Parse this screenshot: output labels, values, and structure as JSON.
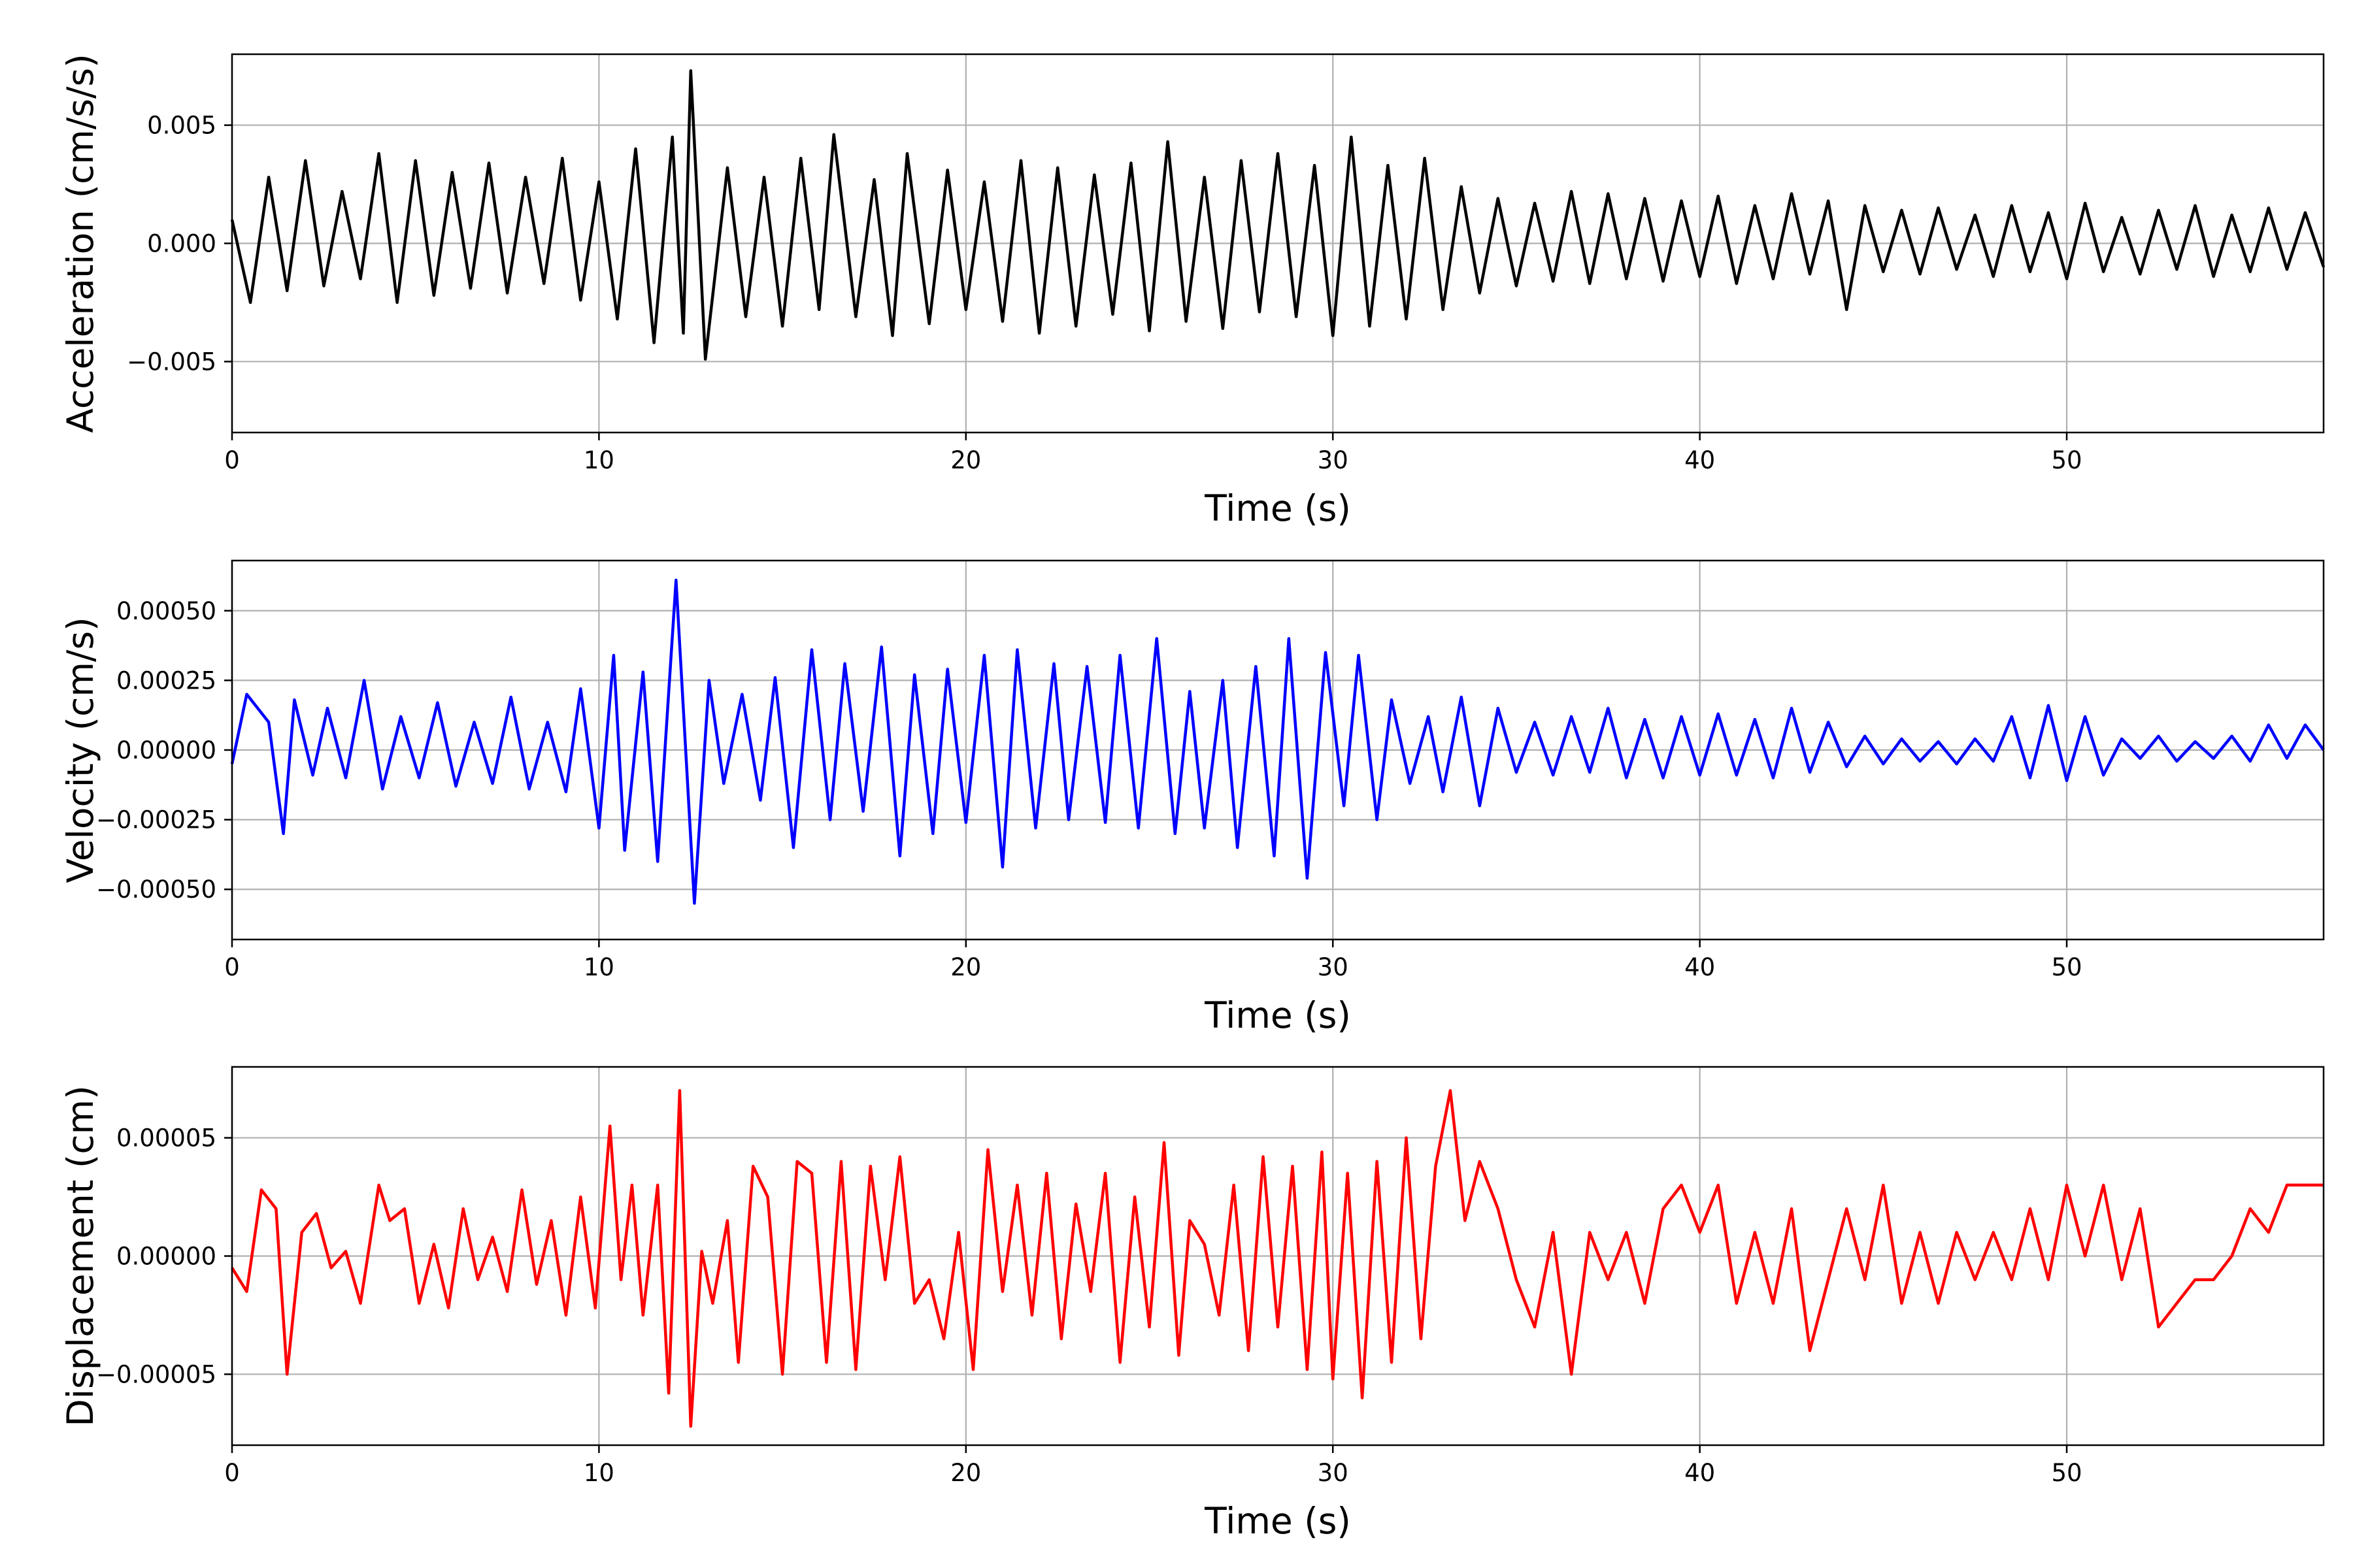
{
  "chart_data": [
    {
      "type": "line",
      "title": "",
      "xlabel": "Time (s)",
      "ylabel": "Acceleration (cm/s/s)",
      "xlim": [
        0,
        57
      ],
      "ylim": [
        -0.008,
        0.008
      ],
      "grid": true,
      "color": "#000000",
      "xticks": [
        0,
        10,
        20,
        30,
        40,
        50
      ],
      "xtick_labels": [
        "0",
        "10",
        "20",
        "30",
        "40",
        "50"
      ],
      "yticks": [
        -0.005,
        0.0,
        0.005
      ],
      "ytick_labels": [
        "−0.005",
        "0.000",
        "0.005"
      ],
      "series": [
        {
          "x": [
            0,
            0.5,
            1,
            1.5,
            2,
            2.5,
            3,
            3.5,
            4,
            4.5,
            5,
            5.5,
            6,
            6.5,
            7,
            7.5,
            8,
            8.5,
            9,
            9.5,
            10,
            10.5,
            11,
            11.5,
            12,
            12.3,
            12.5,
            12.9,
            13.5,
            14,
            14.5,
            15,
            15.5,
            16,
            16.4,
            17,
            17.5,
            18,
            18.4,
            19,
            19.5,
            20,
            20.5,
            21,
            21.5,
            22,
            22.5,
            23,
            23.5,
            24,
            24.5,
            25,
            25.5,
            26,
            26.5,
            27,
            27.5,
            28,
            28.5,
            29,
            29.5,
            30,
            30.5,
            31,
            31.5,
            32,
            32.5,
            33,
            33.5,
            34,
            34.5,
            35,
            35.5,
            36,
            36.5,
            37,
            37.5,
            38,
            38.5,
            39,
            39.5,
            40,
            40.5,
            41,
            41.5,
            42,
            42.5,
            43,
            43.5,
            44,
            44.5,
            45,
            45.5,
            46,
            46.5,
            47,
            47.5,
            48,
            48.5,
            49,
            49.5,
            50,
            50.5,
            51,
            51.5,
            52,
            52.5,
            53,
            53.5,
            54,
            54.5,
            55,
            55.5,
            56,
            56.5,
            57
          ],
          "y": [
            0.001,
            -0.0025,
            0.0028,
            -0.002,
            0.0035,
            -0.0018,
            0.0022,
            -0.0015,
            0.0038,
            -0.0025,
            0.0035,
            -0.0022,
            0.003,
            -0.0019,
            0.0034,
            -0.0021,
            0.0028,
            -0.0017,
            0.0036,
            -0.0024,
            0.0026,
            -0.0032,
            0.004,
            -0.0042,
            0.0045,
            -0.0038,
            0.0073,
            -0.0049,
            0.0032,
            -0.0031,
            0.0028,
            -0.0035,
            0.0036,
            -0.0028,
            0.0046,
            -0.0031,
            0.0027,
            -0.0039,
            0.0038,
            -0.0034,
            0.0031,
            -0.0028,
            0.0026,
            -0.0033,
            0.0035,
            -0.0038,
            0.0032,
            -0.0035,
            0.0029,
            -0.003,
            0.0034,
            -0.0037,
            0.0043,
            -0.0033,
            0.0028,
            -0.0036,
            0.0035,
            -0.0029,
            0.0038,
            -0.0031,
            0.0033,
            -0.0039,
            0.0045,
            -0.0035,
            0.0033,
            -0.0032,
            0.0036,
            -0.0028,
            0.0024,
            -0.0021,
            0.0019,
            -0.0018,
            0.0017,
            -0.0016,
            0.0022,
            -0.0017,
            0.0021,
            -0.0015,
            0.0019,
            -0.0016,
            0.0018,
            -0.0014,
            0.002,
            -0.0017,
            0.0016,
            -0.0015,
            0.0021,
            -0.0013,
            0.0018,
            -0.0028,
            0.0016,
            -0.0012,
            0.0014,
            -0.0013,
            0.0015,
            -0.0011,
            0.0012,
            -0.0014,
            0.0016,
            -0.0012,
            0.0013,
            -0.0015,
            0.0017,
            -0.0012,
            0.0011,
            -0.0013,
            0.0014,
            -0.0011,
            0.0016,
            -0.0014,
            0.0012,
            -0.0012,
            0.0015,
            -0.0011,
            0.0013,
            -0.001
          ]
        }
      ]
    },
    {
      "type": "line",
      "title": "",
      "xlabel": "Time (s)",
      "ylabel": "Velocity (cm/s)",
      "xlim": [
        0,
        57
      ],
      "ylim": [
        -0.00068,
        0.00068
      ],
      "grid": true,
      "color": "#0000ff",
      "xticks": [
        0,
        10,
        20,
        30,
        40,
        50
      ],
      "xtick_labels": [
        "0",
        "10",
        "20",
        "30",
        "40",
        "50"
      ],
      "yticks": [
        -0.0005,
        -0.00025,
        0.0,
        0.00025,
        0.0005
      ],
      "ytick_labels": [
        "−0.00050",
        "−0.00025",
        "0.00000",
        "0.00025",
        "0.00050"
      ],
      "series": [
        {
          "x": [
            0,
            0.4,
            1,
            1.4,
            1.7,
            2.2,
            2.6,
            3.1,
            3.6,
            4.1,
            4.6,
            5.1,
            5.6,
            6.1,
            6.6,
            7.1,
            7.6,
            8.1,
            8.6,
            9.1,
            9.5,
            10,
            10.4,
            10.7,
            11.2,
            11.6,
            12.1,
            12.6,
            13,
            13.4,
            13.9,
            14.4,
            14.8,
            15.3,
            15.8,
            16.3,
            16.7,
            17.2,
            17.7,
            18.2,
            18.6,
            19.1,
            19.5,
            20,
            20.5,
            21,
            21.4,
            21.9,
            22.4,
            22.8,
            23.3,
            23.8,
            24.2,
            24.7,
            25.2,
            25.7,
            26.1,
            26.5,
            27,
            27.4,
            27.9,
            28.4,
            28.8,
            29.3,
            29.8,
            30.3,
            30.7,
            31.2,
            31.6,
            32.1,
            32.6,
            33,
            33.5,
            34,
            34.5,
            35,
            35.5,
            36,
            36.5,
            37,
            37.5,
            38,
            38.5,
            39,
            39.5,
            40,
            40.5,
            41,
            41.5,
            42,
            42.5,
            43,
            43.5,
            44,
            44.5,
            45,
            45.5,
            46,
            46.5,
            47,
            47.5,
            48,
            48.5,
            49,
            49.5,
            50,
            50.5,
            51,
            51.5,
            52,
            52.5,
            53,
            53.5,
            54,
            54.5,
            55,
            55.5,
            56,
            56.5,
            57
          ],
          "y": [
            -5e-05,
            0.0002,
            0.0001,
            -0.0003,
            0.00018,
            -9e-05,
            0.00015,
            -0.0001,
            0.00025,
            -0.00014,
            0.00012,
            -0.0001,
            0.00017,
            -0.00013,
            0.0001,
            -0.00012,
            0.00019,
            -0.00014,
            0.0001,
            -0.00015,
            0.00022,
            -0.00028,
            0.00034,
            -0.00036,
            0.00028,
            -0.0004,
            0.00061,
            -0.00055,
            0.00025,
            -0.00012,
            0.0002,
            -0.00018,
            0.00026,
            -0.00035,
            0.00036,
            -0.00025,
            0.00031,
            -0.00022,
            0.00037,
            -0.00038,
            0.00027,
            -0.0003,
            0.00029,
            -0.00026,
            0.00034,
            -0.00042,
            0.00036,
            -0.00028,
            0.00031,
            -0.00025,
            0.0003,
            -0.00026,
            0.00034,
            -0.00028,
            0.0004,
            -0.0003,
            0.00021,
            -0.00028,
            0.00025,
            -0.00035,
            0.0003,
            -0.00038,
            0.0004,
            -0.00046,
            0.00035,
            -0.0002,
            0.00034,
            -0.00025,
            0.00018,
            -0.00012,
            0.00012,
            -0.00015,
            0.00019,
            -0.0002,
            0.00015,
            -8e-05,
            0.0001,
            -9e-05,
            0.00012,
            -8e-05,
            0.00015,
            -0.0001,
            0.00011,
            -0.0001,
            0.00012,
            -9e-05,
            0.00013,
            -9e-05,
            0.00011,
            -0.0001,
            0.00015,
            -8e-05,
            0.0001,
            -6e-05,
            5e-05,
            -5e-05,
            4e-05,
            -4e-05,
            3e-05,
            -5e-05,
            4e-05,
            -4e-05,
            0.00012,
            -0.0001,
            0.00016,
            -0.00011,
            0.00012,
            -9e-05,
            4e-05,
            -3e-05,
            5e-05,
            -4e-05,
            3e-05,
            -3e-05,
            5e-05,
            -4e-05,
            9e-05,
            -3e-05,
            9e-05,
            0.0
          ]
        }
      ]
    },
    {
      "type": "line",
      "title": "",
      "xlabel": "Time (s)",
      "ylabel": "Displacement (cm)",
      "xlim": [
        0,
        57
      ],
      "ylim": [
        -8e-05,
        8e-05
      ],
      "grid": true,
      "color": "#ff0000",
      "xticks": [
        0,
        10,
        20,
        30,
        40,
        50
      ],
      "xtick_labels": [
        "0",
        "10",
        "20",
        "30",
        "40",
        "50"
      ],
      "yticks": [
        -5e-05,
        0.0,
        5e-05
      ],
      "ytick_labels": [
        "−0.00005",
        "0.00000",
        "0.00005"
      ],
      "series": [
        {
          "x": [
            0,
            0.4,
            0.8,
            1.2,
            1.5,
            1.9,
            2.3,
            2.7,
            3.1,
            3.5,
            4,
            4.3,
            4.7,
            5.1,
            5.5,
            5.9,
            6.3,
            6.7,
            7.1,
            7.5,
            7.9,
            8.3,
            8.7,
            9.1,
            9.5,
            9.9,
            10.3,
            10.6,
            10.9,
            11.2,
            11.6,
            11.9,
            12.2,
            12.5,
            12.8,
            13.1,
            13.5,
            13.8,
            14.2,
            14.6,
            15,
            15.4,
            15.8,
            16.2,
            16.6,
            17,
            17.4,
            17.8,
            18.2,
            18.6,
            19,
            19.4,
            19.8,
            20.2,
            20.6,
            21,
            21.4,
            21.8,
            22.2,
            22.6,
            23,
            23.4,
            23.8,
            24.2,
            24.6,
            25,
            25.4,
            25.8,
            26.1,
            26.5,
            26.9,
            27.3,
            27.7,
            28.1,
            28.5,
            28.9,
            29.3,
            29.7,
            30,
            30.4,
            30.8,
            31.2,
            31.6,
            32,
            32.4,
            32.8,
            33.2,
            33.6,
            34,
            34.5,
            35,
            35.5,
            36,
            36.5,
            37,
            37.5,
            38,
            38.5,
            39,
            39.5,
            40,
            40.5,
            41,
            41.5,
            42,
            42.5,
            43,
            43.5,
            44,
            44.5,
            45,
            45.5,
            46,
            46.5,
            47,
            47.5,
            48,
            48.5,
            49,
            49.5,
            50,
            50.5,
            51,
            51.5,
            52,
            52.5,
            53,
            53.5,
            54,
            54.5,
            55,
            55.5,
            56,
            56.5,
            57
          ],
          "y": [
            -5e-06,
            -1.5e-05,
            2.8e-05,
            2e-05,
            -5e-05,
            1e-05,
            1.8e-05,
            -5e-06,
            2e-06,
            -2e-05,
            3e-05,
            1.5e-05,
            2e-05,
            -2e-05,
            5e-06,
            -2.2e-05,
            2e-05,
            -1e-05,
            8e-06,
            -1.5e-05,
            2.8e-05,
            -1.2e-05,
            1.5e-05,
            -2.5e-05,
            2.5e-05,
            -2.2e-05,
            5.5e-05,
            -1e-05,
            3e-05,
            -2.5e-05,
            3e-05,
            -5.8e-05,
            7e-05,
            -7.2e-05,
            2e-06,
            -2e-05,
            1.5e-05,
            -4.5e-05,
            3.8e-05,
            2.5e-05,
            -5e-05,
            4e-05,
            3.5e-05,
            -4.5e-05,
            4e-05,
            -4.8e-05,
            3.8e-05,
            -1e-05,
            4.2e-05,
            -2e-05,
            -1e-05,
            -3.5e-05,
            1e-05,
            -4.8e-05,
            4.5e-05,
            -1.5e-05,
            3e-05,
            -2.5e-05,
            3.5e-05,
            -3.5e-05,
            2.2e-05,
            -1.5e-05,
            3.5e-05,
            -4.5e-05,
            2.5e-05,
            -3e-05,
            4.8e-05,
            -4.2e-05,
            1.5e-05,
            5e-06,
            -2.5e-05,
            3e-05,
            -4e-05,
            4.2e-05,
            -3e-05,
            3.8e-05,
            -4.8e-05,
            4.4e-05,
            -5.2e-05,
            3.5e-05,
            -6e-05,
            4e-05,
            -4.5e-05,
            5e-05,
            -3.5e-05,
            3.8e-05,
            7e-05,
            1.5e-05,
            4e-05,
            2e-05,
            -1e-05,
            -3e-05,
            1e-05,
            -5e-05,
            1e-05,
            -1e-05,
            1e-05,
            -2e-05,
            2e-05,
            3e-05,
            1e-05,
            3e-05,
            -2e-05,
            1e-05,
            -2e-05,
            2e-05,
            -4e-05,
            -1e-05,
            2e-05,
            -1e-05,
            3e-05,
            -2e-05,
            1e-05,
            -2e-05,
            1e-05,
            -1e-05,
            1e-05,
            -1e-05,
            2e-05,
            -1e-05,
            3e-05,
            0.0,
            3e-05,
            -1e-05,
            2e-05,
            -3e-05,
            -2e-05,
            -1e-05,
            -1e-05,
            0.0,
            2e-05,
            1e-05,
            3e-05,
            3e-05,
            3e-05
          ]
        }
      ]
    }
  ]
}
